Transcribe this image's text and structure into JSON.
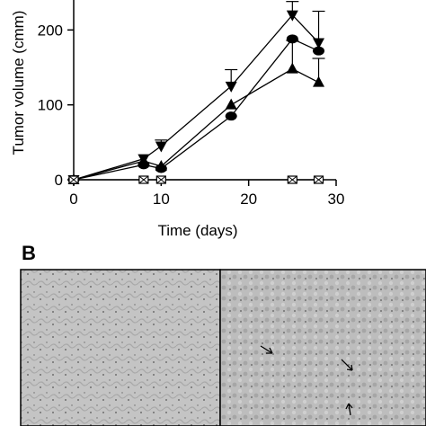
{
  "panel_b_label": "B",
  "chart_data": {
    "type": "line",
    "title": "",
    "xlabel": "Time (days)",
    "ylabel": "Tumor volume (cmm)",
    "xlim": [
      0,
      30
    ],
    "ylim": [
      0,
      240
    ],
    "x_ticks": [
      0,
      10,
      20,
      30
    ],
    "y_ticks": [
      0,
      100,
      200
    ],
    "grid": false,
    "series": [
      {
        "marker": "triangle-down",
        "x": [
          0,
          8,
          10,
          18,
          25,
          28
        ],
        "y": [
          0,
          28,
          45,
          125,
          220,
          183
        ],
        "err": [
          0,
          0,
          8,
          22,
          18,
          42
        ]
      },
      {
        "marker": "circle",
        "x": [
          0,
          8,
          10,
          18,
          25,
          28
        ],
        "y": [
          0,
          20,
          15,
          85,
          188,
          172
        ],
        "err": [
          0,
          0,
          0,
          0,
          0,
          0
        ]
      },
      {
        "marker": "triangle-up",
        "x": [
          0,
          8,
          10,
          18,
          25,
          28
        ],
        "y": [
          0,
          25,
          18,
          100,
          148,
          130
        ],
        "err": [
          0,
          0,
          0,
          0,
          38,
          32
        ]
      },
      {
        "marker": "crossed-square",
        "x": [
          0,
          8,
          10,
          25,
          28
        ],
        "y": [
          0,
          0,
          0,
          0,
          0
        ],
        "err": [
          0,
          0,
          0,
          0,
          0
        ]
      }
    ]
  }
}
